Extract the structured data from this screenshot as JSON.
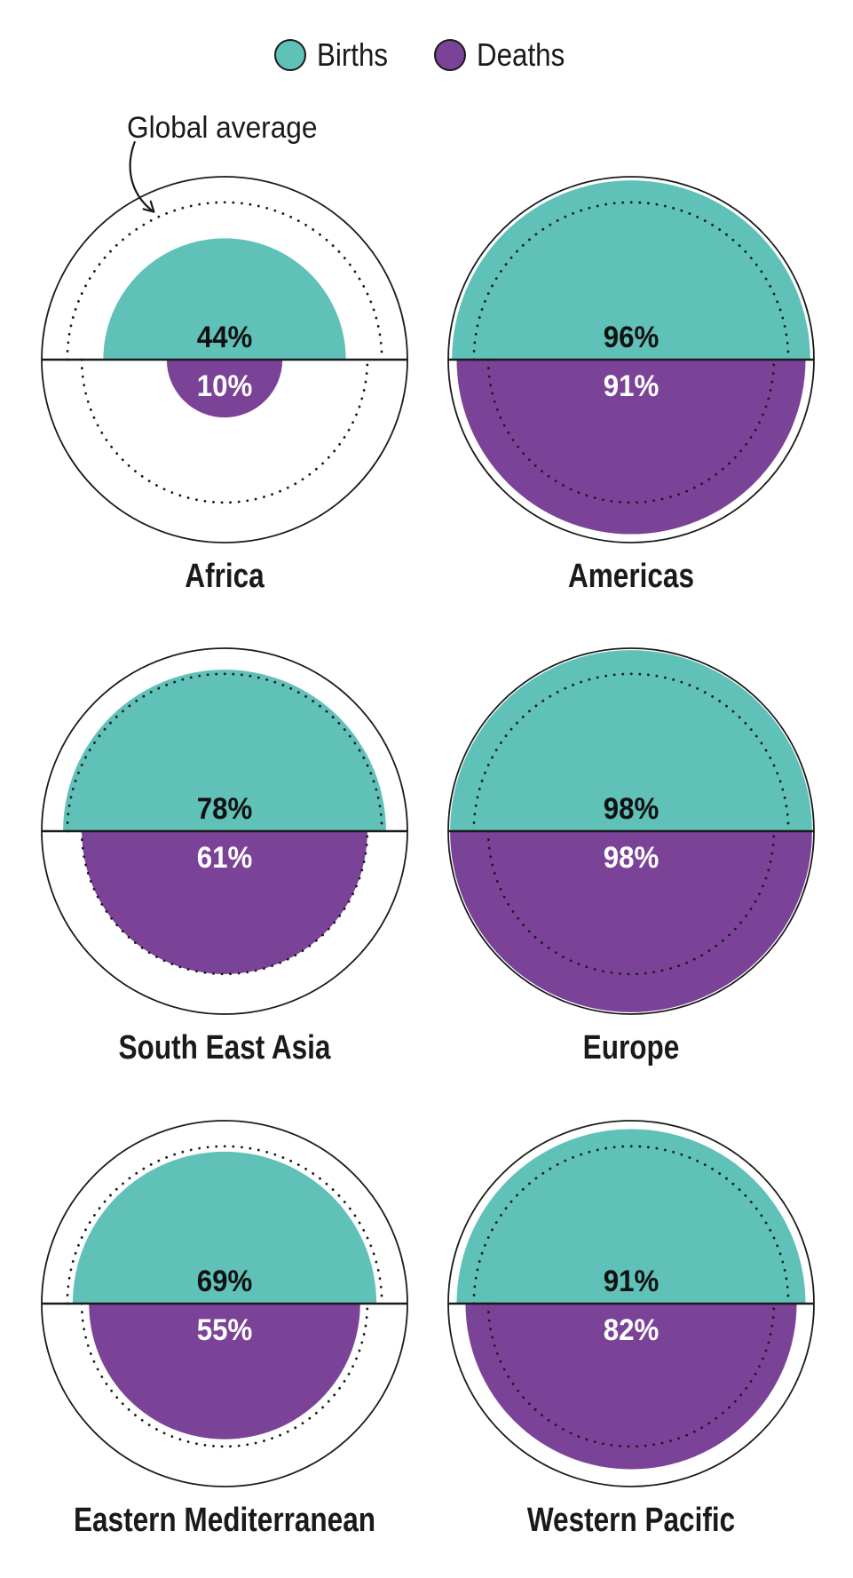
{
  "chart_data": {
    "type": "pie",
    "subtype": "area-proportional-half-circles",
    "description": "Share of births and deaths registered, by WHO region; top teal half-circle = births, bottom purple half-circle = deaths; dotted circle marks the global average",
    "legend": [
      {
        "label": "Births",
        "color": "#5FC1B8"
      },
      {
        "label": "Deaths",
        "color": "#7B4397"
      }
    ],
    "annotation": {
      "label": "Global average"
    },
    "unit": "%",
    "global_average": {
      "births_pct": 74,
      "deaths_pct": 61
    },
    "regions": [
      {
        "name": "Africa",
        "births_pct": 44,
        "deaths_pct": 10
      },
      {
        "name": "Americas",
        "births_pct": 96,
        "deaths_pct": 91
      },
      {
        "name": "South East Asia",
        "births_pct": 78,
        "deaths_pct": 61
      },
      {
        "name": "Europe",
        "births_pct": 98,
        "deaths_pct": 98
      },
      {
        "name": "Eastern Mediterranean",
        "births_pct": 69,
        "deaths_pct": 55
      },
      {
        "name": "Western Pacific",
        "births_pct": 91,
        "deaths_pct": 82
      }
    ],
    "outline_color": "#1a1a1a",
    "value_label_colors": {
      "births": "#111111",
      "deaths": "#ffffff"
    }
  }
}
